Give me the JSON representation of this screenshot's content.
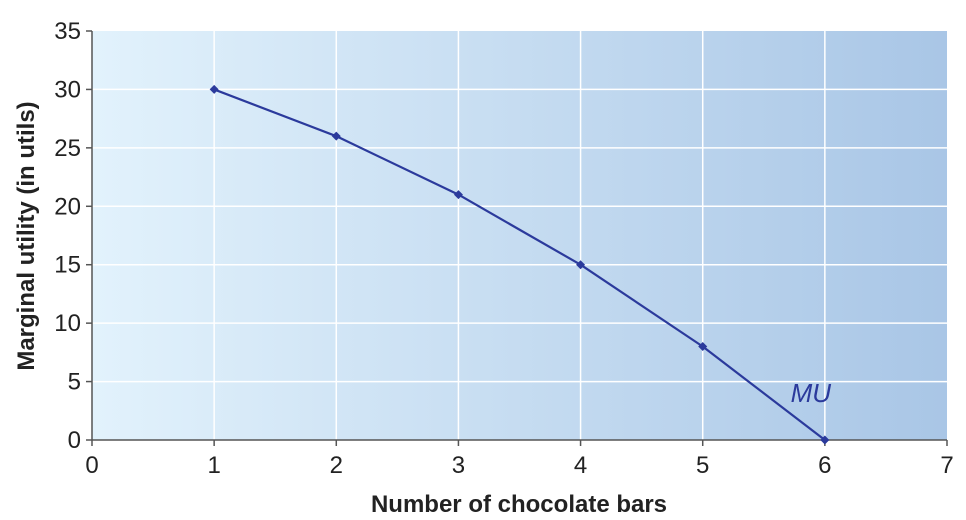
{
  "chart_data": {
    "type": "line",
    "title": "",
    "xlabel": "Number of chocolate bars",
    "ylabel": "Marginal utility (in utils)",
    "xlim": [
      0,
      7
    ],
    "ylim": [
      0,
      35
    ],
    "xticks": [
      "0",
      "1",
      "2",
      "3",
      "4",
      "5",
      "6",
      "7"
    ],
    "yticks": [
      "0",
      "5",
      "10",
      "15",
      "20",
      "25",
      "30",
      "35"
    ],
    "grid": true,
    "series": [
      {
        "name": "MU",
        "color": "#2b3a9c",
        "x": [
          1,
          2,
          3,
          4,
          5,
          6
        ],
        "y": [
          30,
          26,
          21,
          15,
          8,
          0
        ]
      }
    ],
    "background": {
      "from": "#e2f2fc",
      "to": "#a9c6e6"
    }
  }
}
